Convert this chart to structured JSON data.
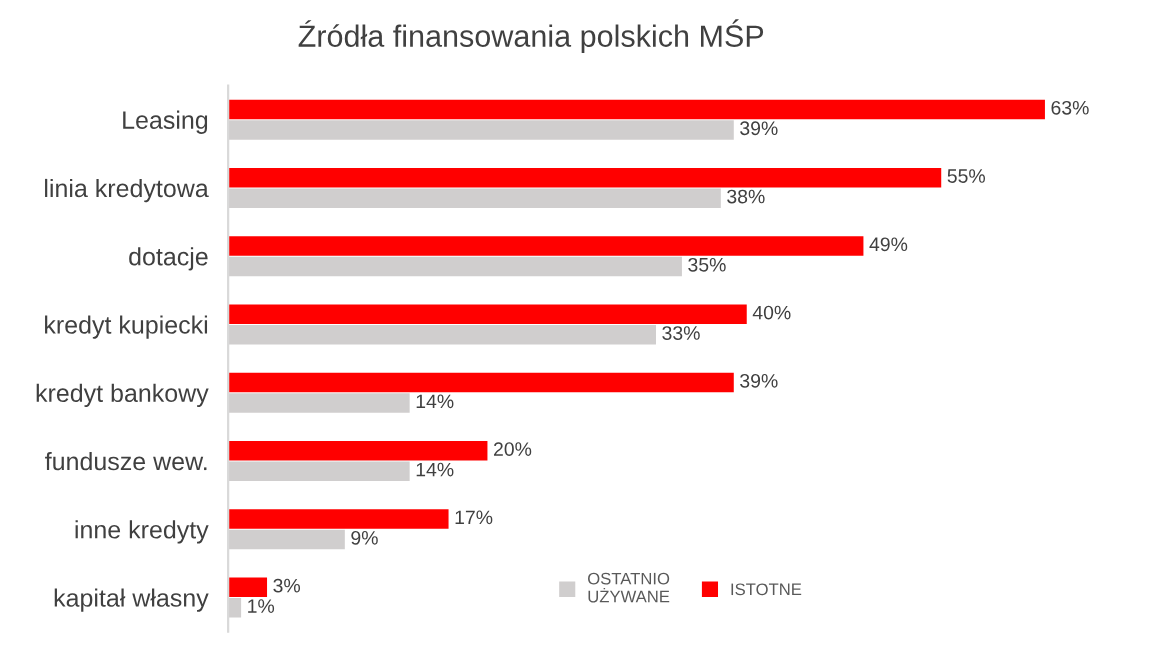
{
  "chart_data": {
    "type": "bar",
    "orientation": "horizontal",
    "title": "Źródła finansowania polskich MŚP",
    "categories": [
      "Leasing",
      "linia kredytowa",
      "dotacje",
      "kredyt kupiecki",
      "kredyt bankowy",
      "fundusze wew.",
      "inne kredyty",
      "kapitał własny"
    ],
    "series": [
      {
        "name": "ISTOTNE",
        "color": "#ff0000",
        "values": [
          63,
          55,
          49,
          40,
          39,
          20,
          17,
          3
        ],
        "value_labels": [
          "63%",
          "55%",
          "49%",
          "40%",
          "39%",
          "20%",
          "17%",
          "3%"
        ]
      },
      {
        "name": "OSTATNIO\nUŻYWANE",
        "color": "#d0cece",
        "values": [
          39,
          38,
          35,
          33,
          14,
          14,
          9,
          1
        ],
        "value_labels": [
          "39%",
          "38%",
          "35%",
          "33%",
          "14%",
          "14%",
          "9%",
          "1%"
        ]
      }
    ],
    "tick_labels": "y",
    "grid": false,
    "legend": "bottom right"
  }
}
